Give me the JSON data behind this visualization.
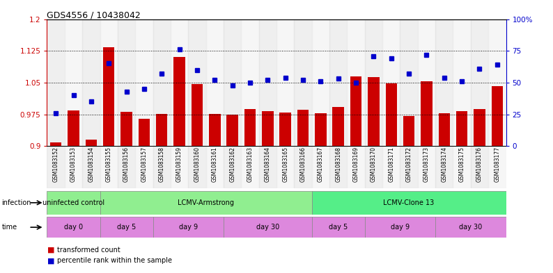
{
  "title": "GDS4556 / 10438042",
  "samples": [
    "GSM1083152",
    "GSM1083153",
    "GSM1083154",
    "GSM1083155",
    "GSM1083156",
    "GSM1083157",
    "GSM1083158",
    "GSM1083159",
    "GSM1083160",
    "GSM1083161",
    "GSM1083162",
    "GSM1083163",
    "GSM1083164",
    "GSM1083165",
    "GSM1083166",
    "GSM1083167",
    "GSM1083168",
    "GSM1083169",
    "GSM1083170",
    "GSM1083171",
    "GSM1083172",
    "GSM1083173",
    "GSM1083174",
    "GSM1083175",
    "GSM1083176",
    "GSM1083177"
  ],
  "bar_values": [
    0.908,
    0.984,
    0.915,
    1.133,
    0.981,
    0.965,
    0.976,
    1.11,
    1.046,
    0.976,
    0.974,
    0.988,
    0.983,
    0.98,
    0.986,
    0.977,
    0.992,
    1.065,
    1.063,
    1.048,
    0.971,
    1.053,
    0.978,
    0.983,
    0.988,
    1.042
  ],
  "dot_values": [
    26,
    40,
    35,
    65,
    43,
    45,
    57,
    76,
    60,
    52,
    48,
    50,
    52,
    54,
    52,
    51,
    53,
    50,
    71,
    69,
    57,
    72,
    54,
    51,
    61,
    64
  ],
  "bar_color": "#cc0000",
  "dot_color": "#0000cc",
  "ylim_left": [
    0.9,
    1.2
  ],
  "ylim_right": [
    0,
    100
  ],
  "yticks_left": [
    0.9,
    0.975,
    1.05,
    1.125,
    1.2
  ],
  "yticks_right": [
    0,
    25,
    50,
    75,
    100
  ],
  "ytick_labels_left": [
    "0.9",
    "0.975",
    "1.05",
    "1.125",
    "1.2"
  ],
  "ytick_labels_right": [
    "0",
    "25",
    "50",
    "75",
    "100%"
  ],
  "hlines": [
    0.975,
    1.05,
    1.125
  ],
  "infection_groups": [
    {
      "label": "uninfected control",
      "start": 0,
      "end": 3
    },
    {
      "label": "LCMV-Armstrong",
      "start": 3,
      "end": 15
    },
    {
      "label": "LCMV-Clone 13",
      "start": 15,
      "end": 26
    }
  ],
  "infection_colors": [
    "#90ee90",
    "#90ee90",
    "#55ee88"
  ],
  "time_groups": [
    {
      "label": "day 0",
      "start": 0,
      "end": 3
    },
    {
      "label": "day 5",
      "start": 3,
      "end": 6
    },
    {
      "label": "day 9",
      "start": 6,
      "end": 10
    },
    {
      "label": "day 30",
      "start": 10,
      "end": 15
    },
    {
      "label": "day 5",
      "start": 15,
      "end": 18
    },
    {
      "label": "day 9",
      "start": 18,
      "end": 22
    },
    {
      "label": "day 30",
      "start": 22,
      "end": 26
    }
  ],
  "time_color": "#dd88dd",
  "legend_items": [
    {
      "label": "transformed count",
      "color": "#cc0000"
    },
    {
      "label": "percentile rank within the sample",
      "color": "#0000cc"
    }
  ],
  "left_tick_color": "#cc0000",
  "right_tick_color": "#0000cc"
}
